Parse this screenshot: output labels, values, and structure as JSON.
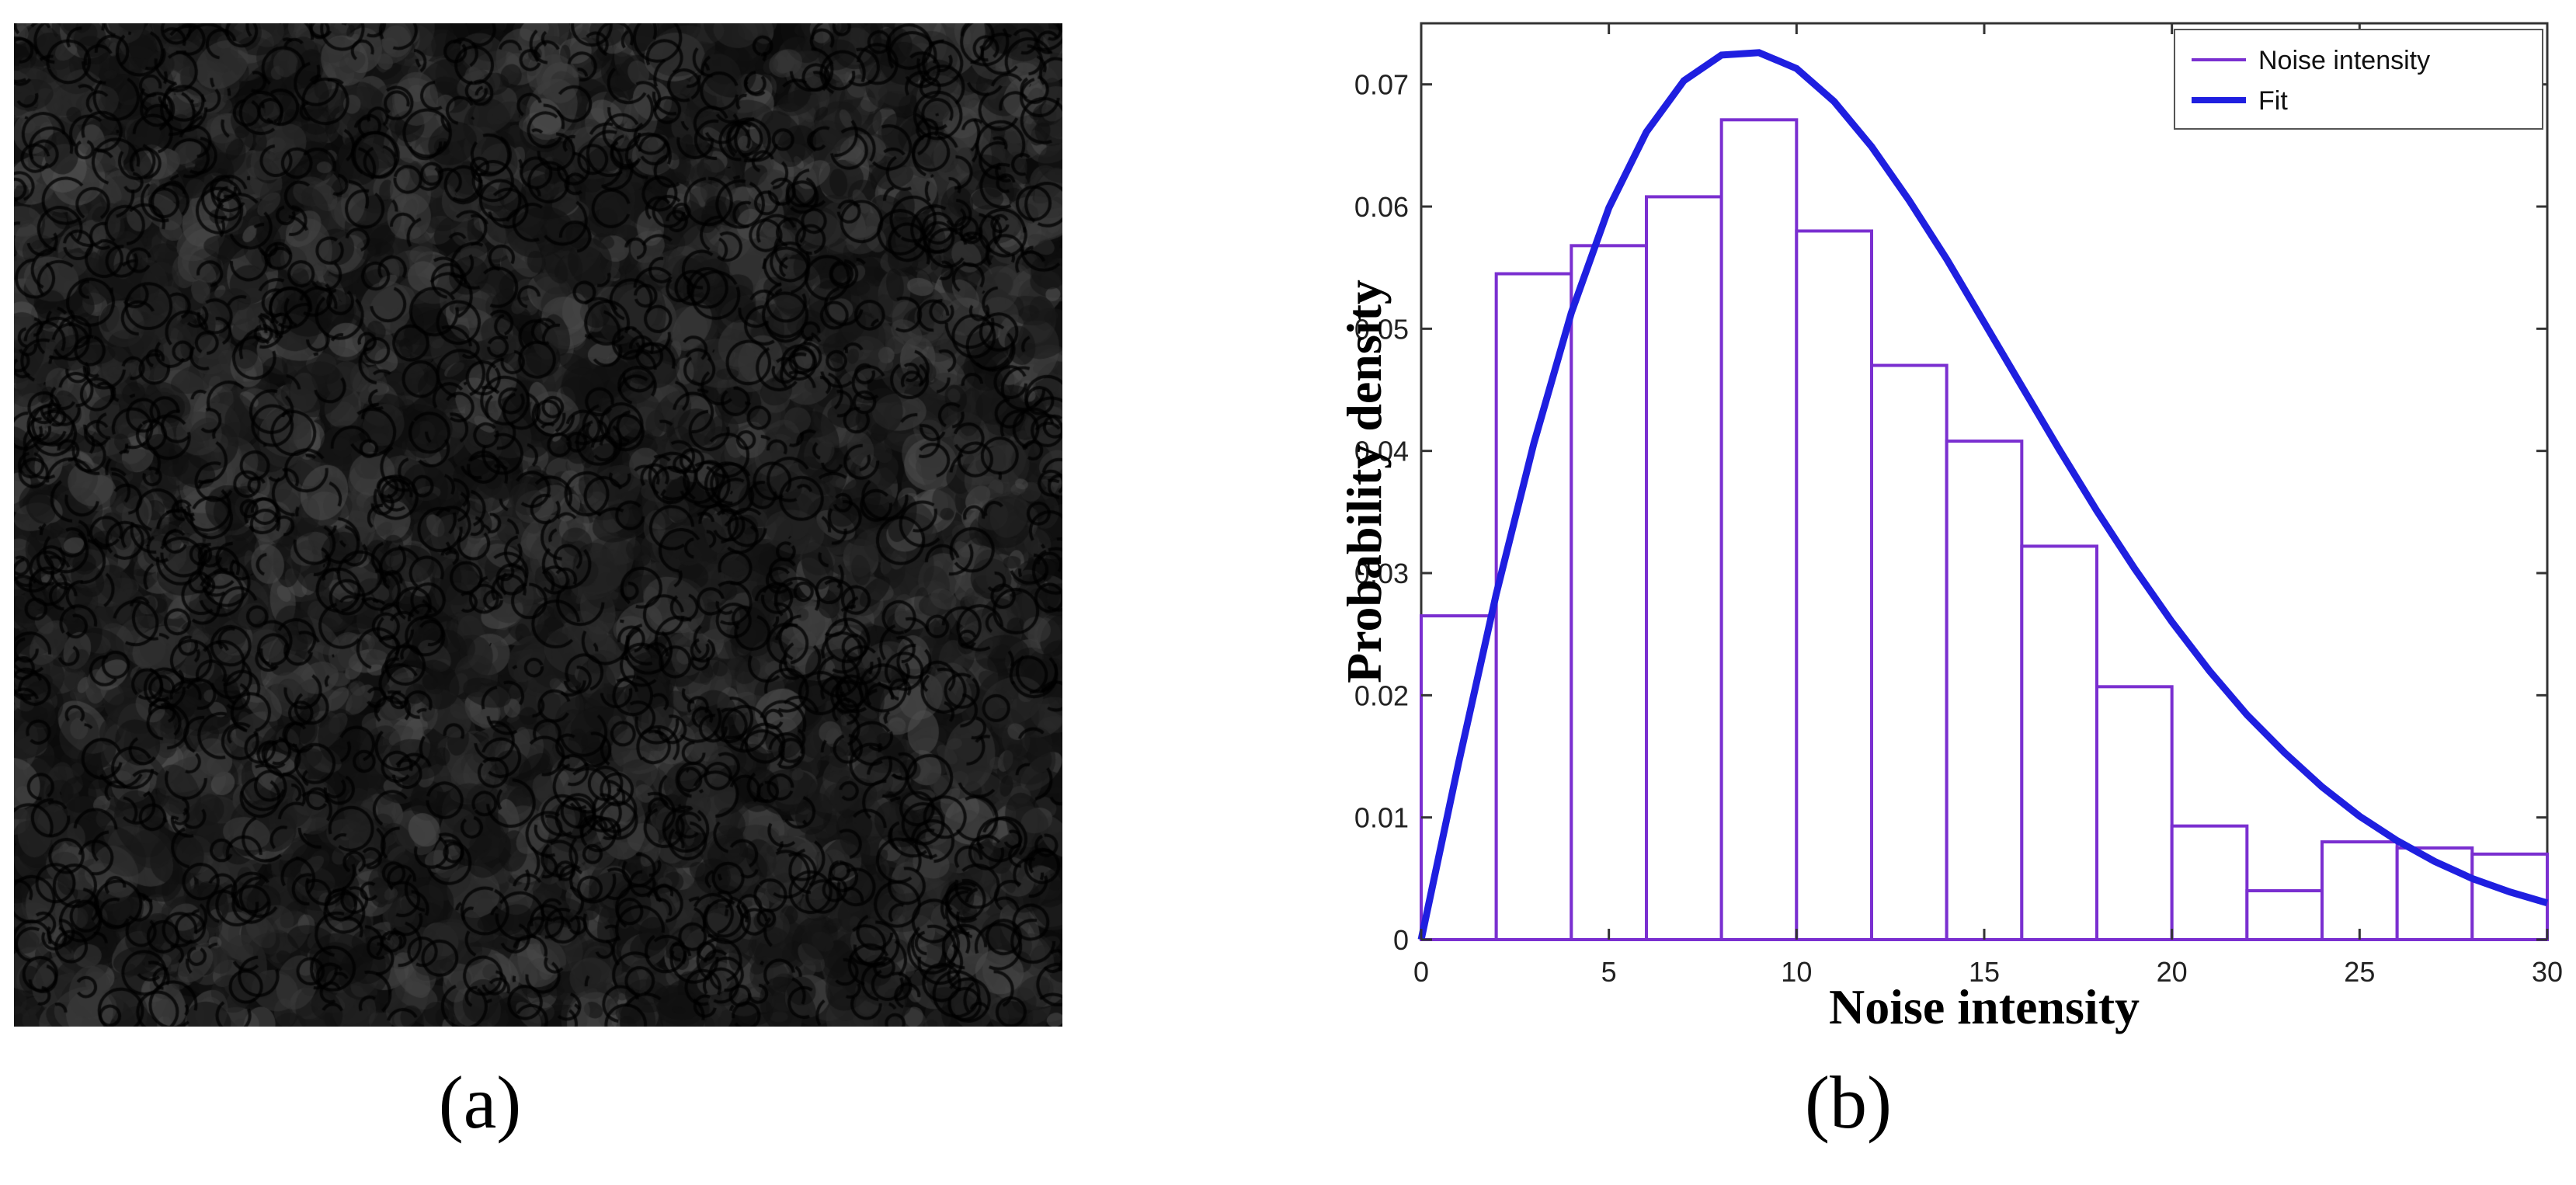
{
  "panels": {
    "a": {
      "caption": "(a)"
    },
    "b": {
      "caption": "(b)"
    }
  },
  "colors": {
    "hist_edge": "#7a2fd0",
    "fit_line": "#1f1fe0",
    "noise_background": "#0a0a0a"
  },
  "chart_data": {
    "type": "bar",
    "title": "",
    "xlabel": "Noise intensity",
    "ylabel": "Probability density",
    "xlim": [
      0,
      30
    ],
    "ylim": [
      0,
      0.075
    ],
    "xticks": [
      0,
      5,
      10,
      15,
      20,
      25,
      30
    ],
    "yticks": [
      0,
      0.01,
      0.02,
      0.03,
      0.04,
      0.05,
      0.06,
      0.07
    ],
    "grid": false,
    "legend_position": "top-right",
    "series": [
      {
        "name": "Noise intensity",
        "type": "histogram",
        "bin_edges": [
          0,
          2,
          4,
          6,
          8,
          10,
          12,
          14,
          16,
          18,
          20,
          22,
          24,
          26,
          28,
          30
        ],
        "values": [
          0.0265,
          0.0545,
          0.0568,
          0.0608,
          0.0671,
          0.058,
          0.047,
          0.0408,
          0.0322,
          0.0207,
          0.0093,
          0.004,
          0.008,
          0.0075,
          0.007
        ]
      },
      {
        "name": "Fit",
        "type": "line",
        "x": [
          0,
          1,
          2,
          3,
          4,
          5,
          6,
          7,
          8,
          9,
          10,
          11,
          12,
          13,
          14,
          15,
          16,
          17,
          18,
          19,
          20,
          21,
          22,
          23,
          24,
          25,
          26,
          27,
          28,
          29,
          30
        ],
        "y": [
          0,
          0.0145,
          0.0283,
          0.0406,
          0.0513,
          0.0599,
          0.0661,
          0.0703,
          0.0724,
          0.0726,
          0.0713,
          0.0686,
          0.0649,
          0.0605,
          0.0557,
          0.0505,
          0.0453,
          0.0401,
          0.0351,
          0.0304,
          0.026,
          0.022,
          0.0184,
          0.0153,
          0.0125,
          0.0101,
          0.0081,
          0.0064,
          0.005,
          0.0039,
          0.003
        ]
      }
    ]
  }
}
